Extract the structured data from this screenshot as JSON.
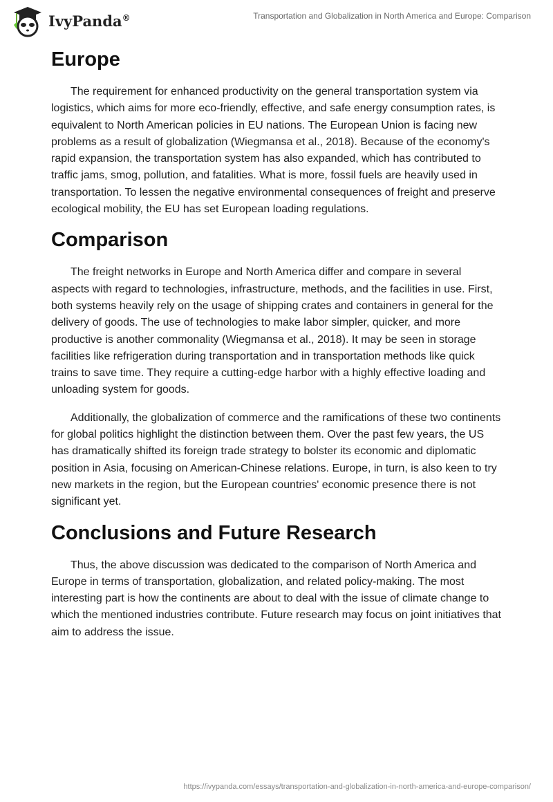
{
  "header": {
    "brand": "IvyPanda",
    "reg": "®",
    "title": "Transportation and Globalization in North America and Europe: Comparison"
  },
  "sections": [
    {
      "heading": "Europe",
      "paragraphs": [
        "The requirement for enhanced productivity on the general transportation system via logistics, which aims for more eco-friendly, effective, and safe energy consumption rates, is equivalent to North American policies in EU nations. The European Union is facing new problems as a result of globalization (Wiegmansa et al., 2018). Because of the economy's rapid expansion, the transportation system has also expanded, which has contributed to traffic jams, smog, pollution, and fatalities. What is more, fossil fuels are heavily used in transportation. To lessen the negative environmental consequences of freight and preserve ecological mobility, the EU has set European loading regulations."
      ]
    },
    {
      "heading": "Comparison",
      "paragraphs": [
        "The freight networks in Europe and North America differ and compare in several aspects with regard to technologies, infrastructure, methods, and the facilities in use. First, both systems heavily rely on the usage of shipping crates and containers in general for the delivery of goods. The use of technologies to make labor simpler, quicker, and more productive is another commonality (Wiegmansa et al., 2018). It may be seen in storage facilities like refrigeration during transportation and in transportation methods like quick trains to save time. They require a cutting-edge harbor with a highly effective loading and unloading system for goods.",
        "Additionally, the globalization of commerce and the ramifications of these two continents for global politics highlight the distinction between them. Over the past few years, the US has dramatically shifted its foreign trade strategy to bolster its economic and diplomatic position in Asia, focusing on American-Chinese relations. Europe, in turn, is also keen to try new markets in the region, but the European countries' economic presence there is not significant yet."
      ]
    },
    {
      "heading": "Conclusions and Future Research",
      "paragraphs": [
        "Thus, the above discussion was dedicated to the comparison of North America and Europe in terms of transportation, globalization, and related policy-making. The most interesting part is how the continents are about to deal with the issue of climate change to which the mentioned industries contribute. Future research may focus on joint initiatives that aim to address the issue."
      ]
    }
  ],
  "footer": {
    "url": "https://ivypanda.com/essays/transportation-and-globalization-in-north-america-and-europe-comparison/"
  }
}
